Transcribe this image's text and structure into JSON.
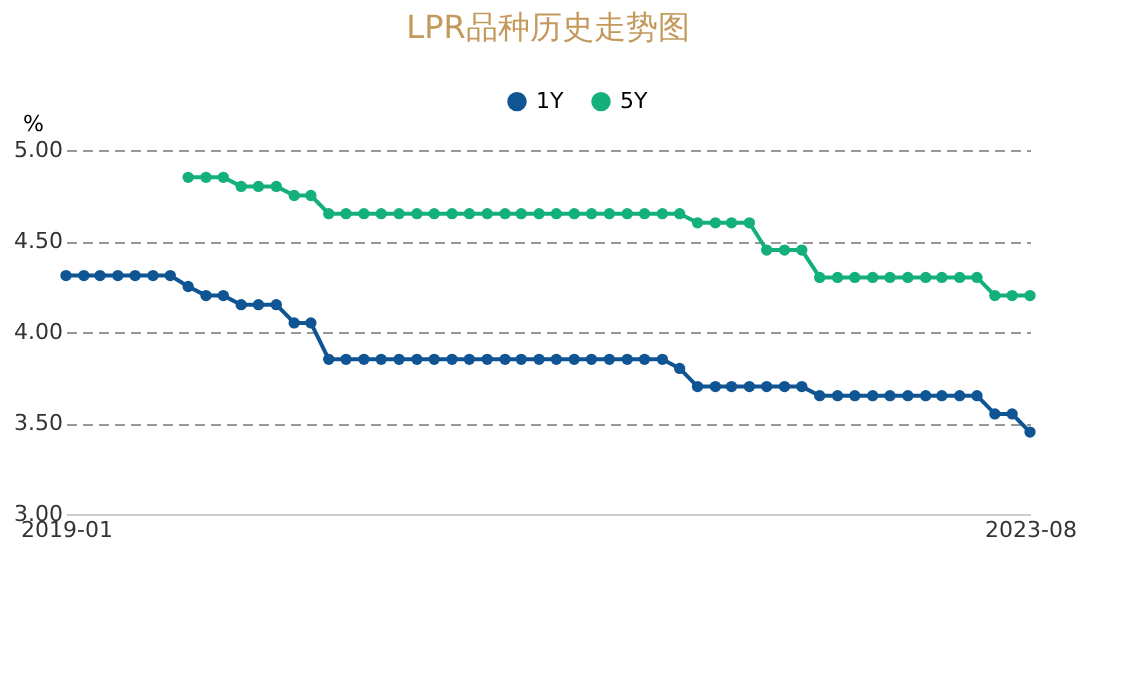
{
  "chart_data": {
    "type": "line",
    "title": "LPR品种历史走势图",
    "ylabel": "%",
    "x": [
      "2019-01",
      "2019-02",
      "2019-03",
      "2019-04",
      "2019-05",
      "2019-06",
      "2019-07",
      "2019-08",
      "2019-09",
      "2019-10",
      "2019-11",
      "2019-12",
      "2020-01",
      "2020-02",
      "2020-03",
      "2020-04",
      "2020-05",
      "2020-06",
      "2020-07",
      "2020-08",
      "2020-09",
      "2020-10",
      "2020-11",
      "2020-12",
      "2021-01",
      "2021-02",
      "2021-03",
      "2021-04",
      "2021-05",
      "2021-06",
      "2021-07",
      "2021-08",
      "2021-09",
      "2021-10",
      "2021-11",
      "2021-12",
      "2022-01",
      "2022-02",
      "2022-03",
      "2022-04",
      "2022-05",
      "2022-06",
      "2022-07",
      "2022-08",
      "2022-09",
      "2022-10",
      "2022-11",
      "2022-12",
      "2023-01",
      "2023-02",
      "2023-03",
      "2023-04",
      "2023-05",
      "2023-06",
      "2023-07",
      "2023-08"
    ],
    "series": [
      {
        "name": "1Y",
        "color": "#0f5594",
        "values": [
          4.31,
          4.31,
          4.31,
          4.31,
          4.31,
          4.31,
          4.31,
          4.25,
          4.2,
          4.2,
          4.15,
          4.15,
          4.15,
          4.05,
          4.05,
          3.85,
          3.85,
          3.85,
          3.85,
          3.85,
          3.85,
          3.85,
          3.85,
          3.85,
          3.85,
          3.85,
          3.85,
          3.85,
          3.85,
          3.85,
          3.85,
          3.85,
          3.85,
          3.85,
          3.85,
          3.8,
          3.7,
          3.7,
          3.7,
          3.7,
          3.7,
          3.7,
          3.7,
          3.65,
          3.65,
          3.65,
          3.65,
          3.65,
          3.65,
          3.65,
          3.65,
          3.65,
          3.65,
          3.55,
          3.55,
          3.45
        ]
      },
      {
        "name": "5Y",
        "color": "#14b07c",
        "values": [
          null,
          null,
          null,
          null,
          null,
          null,
          null,
          4.85,
          4.85,
          4.85,
          4.8,
          4.8,
          4.8,
          4.75,
          4.75,
          4.65,
          4.65,
          4.65,
          4.65,
          4.65,
          4.65,
          4.65,
          4.65,
          4.65,
          4.65,
          4.65,
          4.65,
          4.65,
          4.65,
          4.65,
          4.65,
          4.65,
          4.65,
          4.65,
          4.65,
          4.65,
          4.6,
          4.6,
          4.6,
          4.6,
          4.45,
          4.45,
          4.45,
          4.3,
          4.3,
          4.3,
          4.3,
          4.3,
          4.3,
          4.3,
          4.3,
          4.3,
          4.3,
          4.2,
          4.2,
          4.2
        ]
      }
    ],
    "xlim": [
      "2019-01",
      "2023-08"
    ],
    "xticks": [
      "2019-01",
      "2023-08"
    ],
    "ylim": [
      3.0,
      5.0
    ],
    "yticks": [
      {
        "value": 3.0,
        "label": "3.00"
      },
      {
        "value": 3.5,
        "label": "3.50"
      },
      {
        "value": 4.0,
        "label": "4.00"
      },
      {
        "value": 4.5,
        "label": "4.50"
      },
      {
        "value": 5.0,
        "label": "5.00"
      }
    ],
    "grid": "y",
    "legend": "top",
    "marker": "circle",
    "line_style": "solid"
  }
}
